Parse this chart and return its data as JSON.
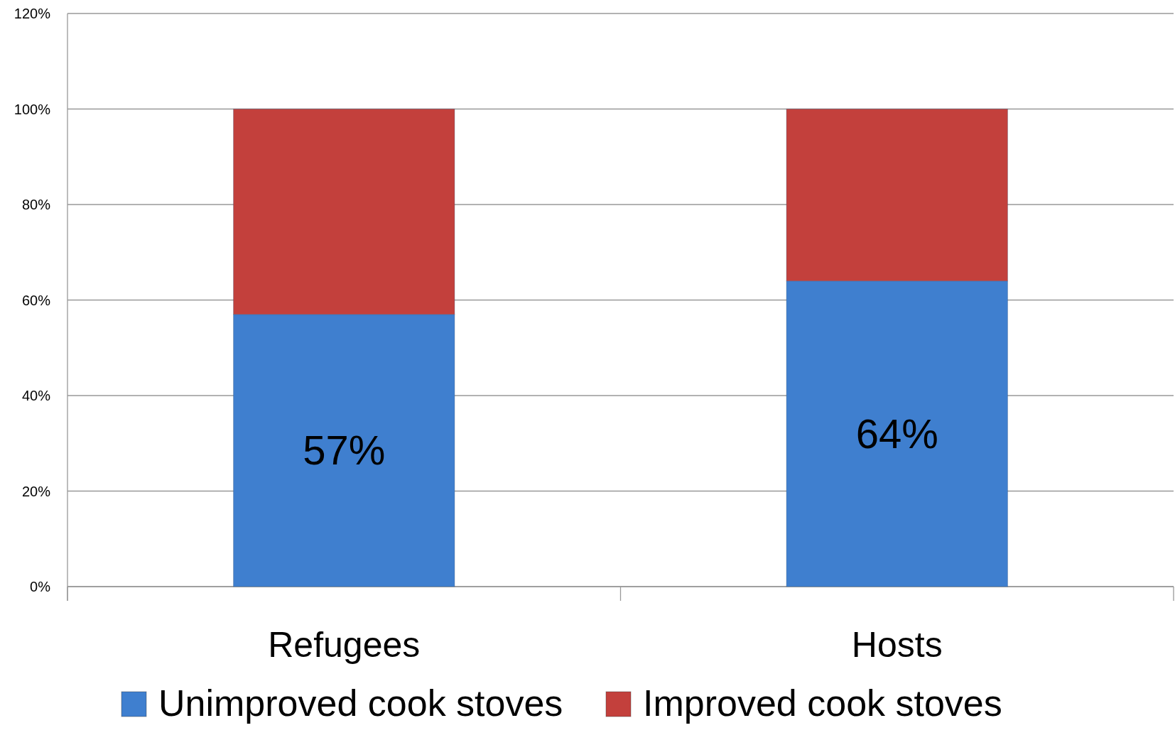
{
  "chart_data": {
    "type": "bar",
    "stacked": true,
    "categories": [
      "Refugees",
      "Hosts"
    ],
    "series": [
      {
        "name": "Unimproved cook stoves",
        "color": "#3f7fcf",
        "values": [
          57,
          64
        ],
        "value_labels": [
          "57%",
          "64%"
        ]
      },
      {
        "name": "Improved cook stoves",
        "color": "#c3403c",
        "values": [
          43,
          36
        ]
      }
    ],
    "ylim": [
      0,
      120
    ],
    "yticks": [
      {
        "value": 0,
        "label": "0%"
      },
      {
        "value": 20,
        "label": "20%"
      },
      {
        "value": 40,
        "label": "40%"
      },
      {
        "value": 60,
        "label": "60%"
      },
      {
        "value": 80,
        "label": "80%"
      },
      {
        "value": 100,
        "label": "100%"
      },
      {
        "value": 120,
        "label": "120%"
      }
    ],
    "grid": "y",
    "legend": "bottom"
  }
}
